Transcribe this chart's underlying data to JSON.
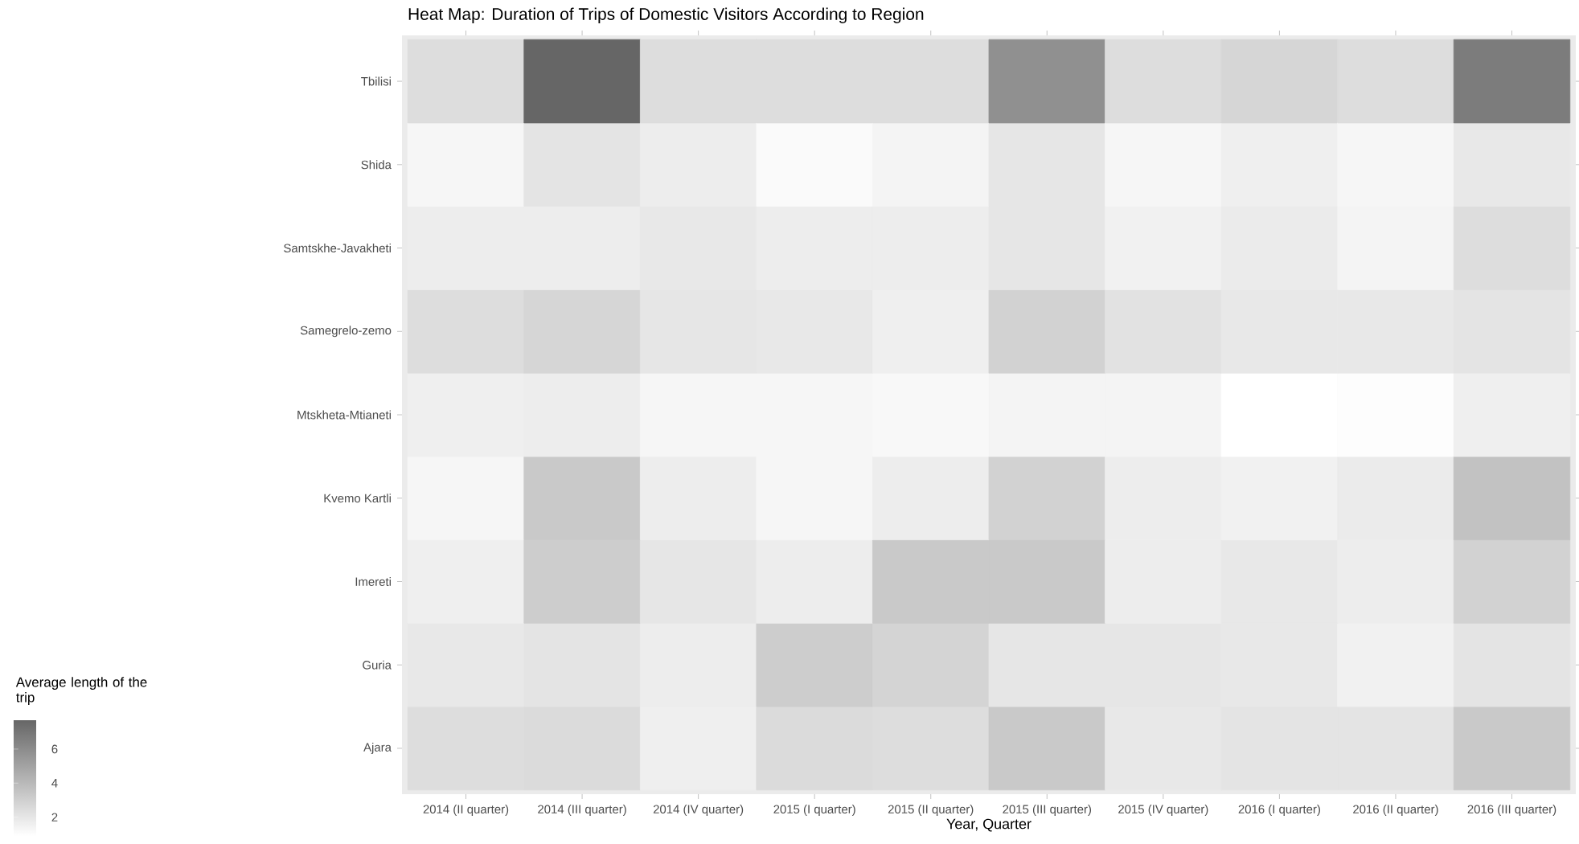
{
  "chart_data": {
    "type": "heatmap",
    "title": "Heat Map: Duration of Trips of Domestic Visitors According to Region",
    "xlabel": "Year, Quarter",
    "clabel": "Average length of the trip",
    "categories": [
      "2014 (II quarter)",
      "2014 (III quarter)",
      "2014 (IV quarter)",
      "2015 (I quarter)",
      "2015 (II quarter)",
      "2015 (III quarter)",
      "2015 (IV quarter)",
      "2016 (I quarter)",
      "2016 (II quarter)",
      "2016 (III quarter)"
    ],
    "y_categories": [
      "Tbilisi",
      "Shida",
      "Samtskhe-Javakheti",
      "Samegrelo-zemo",
      "Mtskheta-Mtianeti",
      "Kvemo Kartli",
      "Imereti",
      "Guria",
      "Ajara"
    ],
    "cells": [
      [
        2.4,
        7.7,
        2.4,
        2.4,
        2.4,
        5.8,
        2.4,
        2.7,
        2.4,
        6.7
      ],
      [
        1.3,
        2.1,
        1.7,
        1.1,
        1.4,
        2.0,
        1.3,
        1.6,
        1.3,
        1.9
      ],
      [
        1.7,
        1.7,
        1.9,
        1.7,
        1.7,
        2.0,
        1.5,
        1.8,
        1.4,
        2.4
      ],
      [
        2.4,
        2.7,
        2.0,
        1.9,
        1.6,
        2.9,
        2.2,
        1.9,
        1.9,
        2.1
      ],
      [
        1.6,
        1.7,
        1.3,
        1.3,
        1.2,
        1.4,
        1.4,
        0.9,
        1.0,
        1.6
      ],
      [
        1.3,
        3.3,
        1.7,
        1.3,
        1.7,
        2.9,
        1.7,
        1.5,
        1.8,
        3.6
      ],
      [
        1.6,
        3.1,
        2.0,
        1.7,
        3.3,
        3.3,
        1.7,
        1.9,
        1.7,
        2.9
      ],
      [
        1.9,
        2.1,
        1.7,
        3.1,
        2.8,
        2.0,
        2.0,
        1.9,
        1.5,
        2.1
      ],
      [
        2.4,
        2.5,
        1.6,
        2.5,
        2.4,
        3.3,
        1.9,
        2.1,
        2.1,
        3.3
      ]
    ],
    "clim": [
      0.9,
      7.7
    ],
    "cticks": [
      2,
      4,
      6
    ]
  }
}
